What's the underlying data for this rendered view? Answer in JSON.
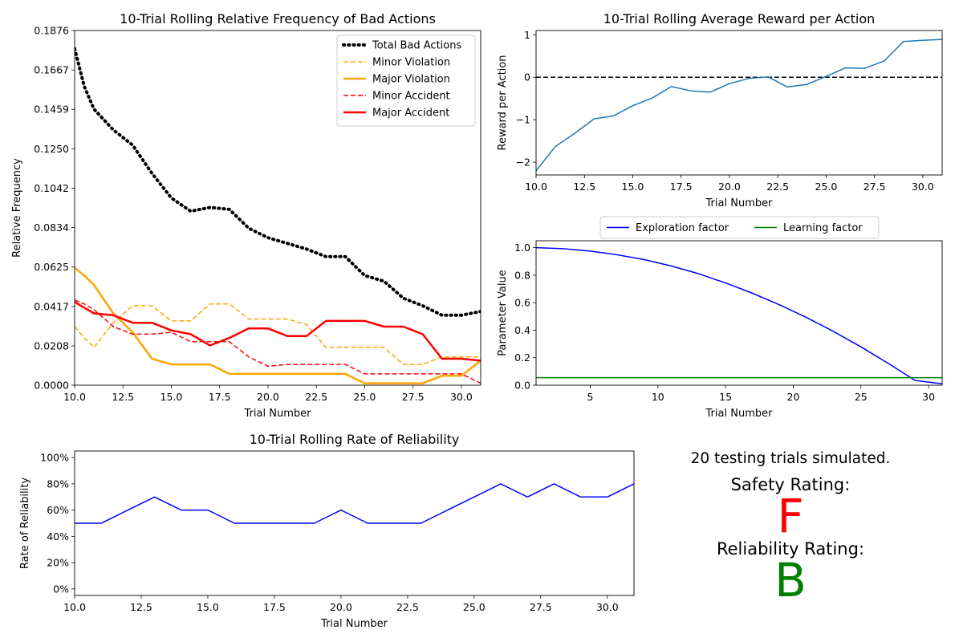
{
  "charts": [
    {
      "id": "bad-actions",
      "type": "line",
      "title": "10-Trial Rolling Relative Frequency of Bad Actions",
      "xlabel": "Trial Number",
      "ylabel": "Relative Frequency",
      "xlim": [
        10,
        31
      ],
      "ylim": [
        0,
        0.1876
      ],
      "xticks": [
        10.0,
        12.5,
        15.0,
        17.5,
        20.0,
        22.5,
        25.0,
        27.5,
        30.0
      ],
      "xtick_labels": [
        "10.0",
        "12.5",
        "15.0",
        "17.5",
        "20.0",
        "22.5",
        "25.0",
        "27.5",
        "30.0"
      ],
      "yticks": [
        0,
        0.0208,
        0.0417,
        0.0625,
        0.0834,
        0.1042,
        0.125,
        0.1459,
        0.1667,
        0.1876
      ],
      "ytick_labels": [
        "0.0000",
        "0.0208",
        "0.0417",
        "0.0625",
        "0.0834",
        "0.1042",
        "0.1250",
        "0.1459",
        "0.1667",
        "0.1876"
      ],
      "legend_position": "top-right",
      "x": [
        10,
        10.5,
        11,
        12,
        13,
        14,
        15,
        16,
        17,
        18,
        19,
        20,
        21,
        22,
        23,
        24,
        25,
        26,
        27,
        28,
        29,
        30,
        31
      ],
      "series": [
        {
          "name": "Total Bad Actions",
          "color": "#000000",
          "style": "dotted",
          "width": 4,
          "values": [
            0.178,
            0.158,
            0.146,
            0.135,
            0.127,
            0.112,
            0.099,
            0.092,
            0.094,
            0.093,
            0.083,
            0.078,
            0.075,
            0.072,
            0.068,
            0.068,
            0.058,
            0.055,
            0.046,
            0.042,
            0.037,
            0.037,
            0.039
          ]
        },
        {
          "name": "Minor Violation",
          "color": "#ffa500",
          "style": "dashed",
          "width": 1.5,
          "values": [
            0.031,
            0.025,
            0.02,
            0.033,
            0.042,
            0.042,
            0.034,
            0.034,
            0.043,
            0.043,
            0.035,
            0.035,
            0.035,
            0.032,
            0.02,
            0.02,
            0.02,
            0.02,
            0.011,
            0.011,
            0.015,
            0.015,
            0.015
          ]
        },
        {
          "name": "Major Violation",
          "color": "#ffa500",
          "style": "solid",
          "width": 2.5,
          "values": [
            0.062,
            0.058,
            0.053,
            0.038,
            0.028,
            0.014,
            0.011,
            0.011,
            0.011,
            0.006,
            0.006,
            0.006,
            0.006,
            0.006,
            0.006,
            0.006,
            0.001,
            0.001,
            0.001,
            0.001,
            0.005,
            0.005,
            0.013
          ]
        },
        {
          "name": "Minor Accident",
          "color": "#ff0000",
          "style": "dashed",
          "width": 1.5,
          "values": [
            0.045,
            0.043,
            0.04,
            0.031,
            0.027,
            0.027,
            0.028,
            0.023,
            0.023,
            0.023,
            0.015,
            0.01,
            0.011,
            0.011,
            0.011,
            0.011,
            0.006,
            0.006,
            0.006,
            0.006,
            0.006,
            0.006,
            0.001
          ]
        },
        {
          "name": "Major Accident",
          "color": "#ff0000",
          "style": "solid",
          "width": 2.5,
          "values": [
            0.044,
            0.041,
            0.038,
            0.037,
            0.033,
            0.033,
            0.029,
            0.027,
            0.021,
            0.025,
            0.03,
            0.03,
            0.026,
            0.026,
            0.034,
            0.034,
            0.034,
            0.031,
            0.031,
            0.027,
            0.014,
            0.014,
            0.013
          ]
        }
      ]
    },
    {
      "id": "reward",
      "type": "line",
      "title": "10-Trial Rolling Average Reward per Action",
      "xlabel": "Trial Number",
      "ylabel": "Reward per Action",
      "xlim": [
        10,
        31
      ],
      "ylim": [
        -2.3,
        1.1
      ],
      "xticks": [
        10.0,
        12.5,
        15.0,
        17.5,
        20.0,
        22.5,
        25.0,
        27.5,
        30.0
      ],
      "xtick_labels": [
        "10.0",
        "12.5",
        "15.0",
        "17.5",
        "20.0",
        "22.5",
        "25.0",
        "27.5",
        "30.0"
      ],
      "yticks": [
        -2,
        -1,
        0,
        1
      ],
      "ytick_labels": [
        "−2",
        "−1",
        "0",
        "1"
      ],
      "reference_line": 0,
      "x": [
        10,
        11,
        12,
        13,
        14,
        15,
        16,
        17,
        18,
        19,
        20,
        21,
        22,
        23,
        24,
        25,
        26,
        27,
        28,
        29,
        30,
        31
      ],
      "series": [
        {
          "color": "#1f77b4",
          "style": "solid",
          "width": 1.5,
          "values": [
            -2.2,
            -1.63,
            -1.32,
            -0.98,
            -0.91,
            -0.67,
            -0.49,
            -0.22,
            -0.32,
            -0.35,
            -0.15,
            -0.03,
            0.01,
            -0.23,
            -0.17,
            0.02,
            0.22,
            0.21,
            0.38,
            0.84,
            0.87,
            0.89
          ]
        }
      ]
    },
    {
      "id": "parameters",
      "type": "line",
      "title": "",
      "xlabel": "Trial Number",
      "ylabel": "Parameter Value",
      "xlim": [
        1,
        31
      ],
      "ylim": [
        0,
        1.05
      ],
      "xticks": [
        5,
        10,
        15,
        20,
        25,
        30
      ],
      "xtick_labels": [
        "5",
        "10",
        "15",
        "20",
        "25",
        "30"
      ],
      "yticks": [
        0,
        0.2,
        0.4,
        0.6,
        0.8,
        1.0
      ],
      "ytick_labels": [
        "0.0",
        "0.2",
        "0.4",
        "0.6",
        "0.8",
        "1.0"
      ],
      "legend_position": "above",
      "x": [
        1,
        3,
        5,
        7,
        9,
        11,
        13,
        15,
        17,
        19,
        21,
        23,
        25,
        27,
        29,
        31
      ],
      "series": [
        {
          "name": "Exploration factor",
          "color": "#0000ff",
          "style": "solid",
          "width": 1.5,
          "values": [
            1.0,
            0.992,
            0.975,
            0.948,
            0.913,
            0.866,
            0.811,
            0.743,
            0.668,
            0.584,
            0.491,
            0.389,
            0.279,
            0.16,
            0.035,
            0.01
          ]
        },
        {
          "name": "Learning factor",
          "color": "#008000",
          "style": "solid",
          "width": 1.5,
          "values": [
            0.055,
            0.055,
            0.055,
            0.055,
            0.055,
            0.055,
            0.055,
            0.055,
            0.055,
            0.055,
            0.055,
            0.055,
            0.055,
            0.055,
            0.055,
            0.055
          ]
        }
      ]
    },
    {
      "id": "reliability",
      "type": "line",
      "title": "10-Trial Rolling Rate of Reliability",
      "xlabel": "Trial Number",
      "ylabel": "Rate of Reliability",
      "xlim": [
        10,
        31
      ],
      "ylim": [
        -5,
        105
      ],
      "xticks": [
        10.0,
        12.5,
        15.0,
        17.5,
        20.0,
        22.5,
        25.0,
        27.5,
        30.0
      ],
      "xtick_labels": [
        "10.0",
        "12.5",
        "15.0",
        "17.5",
        "20.0",
        "22.5",
        "25.0",
        "27.5",
        "30.0"
      ],
      "yticks": [
        0,
        20,
        40,
        60,
        80,
        100
      ],
      "ytick_labels": [
        "0%",
        "20%",
        "40%",
        "60%",
        "80%",
        "100%"
      ],
      "x": [
        10,
        11,
        12,
        13,
        14,
        15,
        16,
        17,
        18,
        19,
        20,
        21,
        22,
        23,
        24,
        25,
        26,
        27,
        28,
        29,
        30,
        31
      ],
      "series": [
        {
          "color": "#0000ff",
          "style": "solid",
          "width": 1.5,
          "values": [
            50,
            50,
            60,
            70,
            60,
            60,
            50,
            50,
            50,
            50,
            60,
            50,
            50,
            50,
            60,
            70,
            80,
            70,
            80,
            70,
            70,
            80
          ]
        }
      ]
    }
  ],
  "summary": {
    "trials_text": "20 testing trials simulated.",
    "safety_label": "Safety Rating:",
    "safety_grade": "F",
    "safety_color": "#ff0000",
    "reliability_label": "Reliability Rating:",
    "reliability_grade": "B",
    "reliability_color": "#008000"
  }
}
